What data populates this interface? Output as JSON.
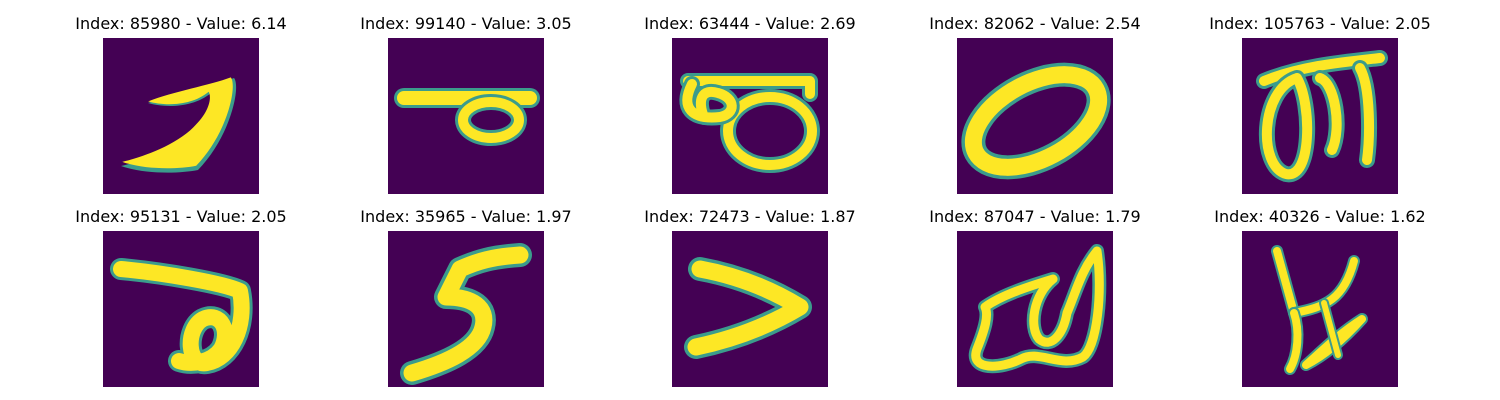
{
  "figure": {
    "panels": [
      {
        "title": "Index: 85980 - Value: 6.14",
        "glyph": "stroke-hook"
      },
      {
        "title": "Index: 99140 - Value: 3.05",
        "glyph": "bar-loop"
      },
      {
        "title": "Index: 63444 - Value: 2.69",
        "glyph": "double-loop"
      },
      {
        "title": "Index: 82062 - Value: 2.54",
        "glyph": "oval"
      },
      {
        "title": "Index: 105763 - Value: 2.05",
        "glyph": "arch-loop"
      },
      {
        "title": "Index: 95131 - Value: 2.05",
        "glyph": "bar-hook-loop"
      },
      {
        "title": "Index: 35965 - Value: 1.97",
        "glyph": "five"
      },
      {
        "title": "Index: 72473 - Value: 1.87",
        "glyph": "chevron"
      },
      {
        "title": "Index: 87047 - Value: 1.79",
        "glyph": "w-loop"
      },
      {
        "title": "Index: 40326 - Value: 1.62",
        "glyph": "cross-branch"
      }
    ],
    "colors": {
      "background": "#440154",
      "edge": "#3b9c8c",
      "foreground": "#fde725"
    }
  }
}
